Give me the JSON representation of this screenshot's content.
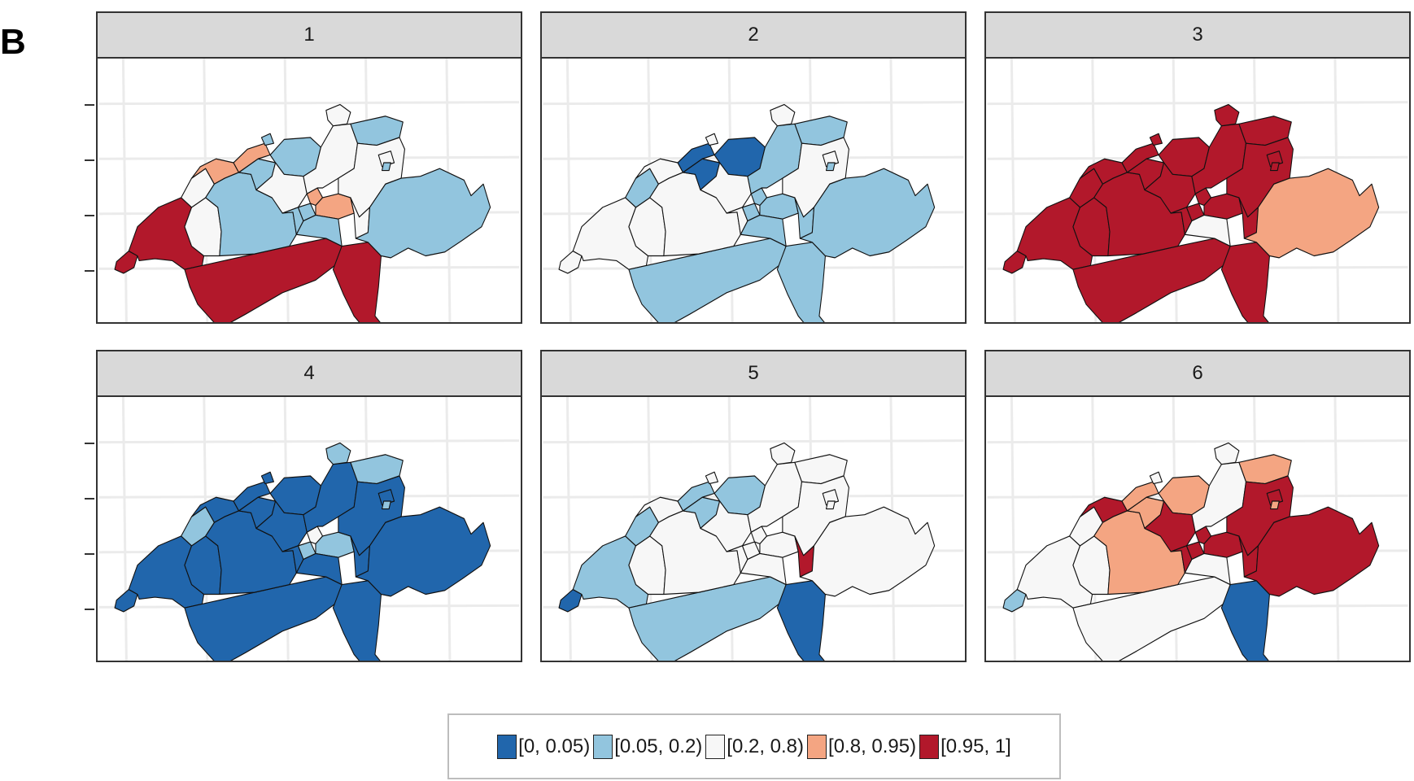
{
  "panel_label": "B",
  "facets": [
    {
      "label": "1",
      "classes": {
        "GE": 4,
        "VD": 4,
        "VS": 4,
        "TI": 4,
        "FR": 2,
        "NE": 2,
        "JU": 3,
        "BE": 1,
        "SO": 1,
        "BL": 3,
        "BS": 1,
        "AG": 1,
        "LU": 2,
        "OW": 1,
        "NW": 1,
        "ZG": 3,
        "SZ": 3,
        "UR": 1,
        "ZH": 2,
        "SH": 2,
        "TG": 1,
        "SG": 2,
        "AR": 2,
        "AI": 1,
        "GL": 2,
        "GR": 1
      }
    },
    {
      "label": "2",
      "classes": {
        "GE": 2,
        "VD": 2,
        "VS": 1,
        "TI": 1,
        "FR": 2,
        "NE": 1,
        "JU": 2,
        "BE": 2,
        "SO": 0,
        "BL": 0,
        "BS": 2,
        "AG": 0,
        "LU": 2,
        "OW": 2,
        "NW": 1,
        "ZG": 1,
        "SZ": 1,
        "UR": 1,
        "ZH": 1,
        "SH": 2,
        "TG": 1,
        "SG": 2,
        "AR": 2,
        "AI": 1,
        "GL": 1,
        "GR": 1
      }
    },
    {
      "label": "3",
      "classes": {
        "GE": 4,
        "VD": 4,
        "VS": 4,
        "TI": 4,
        "FR": 4,
        "NE": 4,
        "JU": 4,
        "BE": 4,
        "SO": 4,
        "BL": 4,
        "BS": 4,
        "AG": 4,
        "LU": 4,
        "OW": 4,
        "NW": 4,
        "ZG": 4,
        "SZ": 4,
        "UR": 2,
        "ZH": 4,
        "SH": 4,
        "TG": 4,
        "SG": 4,
        "AR": 4,
        "AI": 4,
        "GL": 4,
        "GR": 3
      }
    },
    {
      "label": "4",
      "classes": {
        "GE": 0,
        "VD": 0,
        "VS": 0,
        "TI": 0,
        "FR": 0,
        "NE": 1,
        "JU": 0,
        "BE": 0,
        "SO": 0,
        "BL": 0,
        "BS": 0,
        "AG": 0,
        "LU": 0,
        "OW": 0,
        "NW": 1,
        "ZG": 2,
        "SZ": 1,
        "UR": 0,
        "ZH": 0,
        "SH": 1,
        "TG": 1,
        "SG": 0,
        "AR": 0,
        "AI": 1,
        "GL": 0,
        "GR": 0
      }
    },
    {
      "label": "5",
      "classes": {
        "GE": 0,
        "VD": 1,
        "VS": 1,
        "TI": 0,
        "FR": 2,
        "NE": 1,
        "JU": 2,
        "BE": 2,
        "SO": 1,
        "BL": 1,
        "BS": 2,
        "AG": 1,
        "LU": 2,
        "OW": 2,
        "NW": 2,
        "ZG": 2,
        "SZ": 2,
        "UR": 2,
        "ZH": 2,
        "SH": 2,
        "TG": 2,
        "SG": 2,
        "AR": 2,
        "AI": 2,
        "GL": 4,
        "GR": 2
      }
    },
    {
      "label": "6",
      "classes": {
        "GE": 1,
        "VD": 2,
        "VS": 2,
        "TI": 0,
        "FR": 2,
        "NE": 2,
        "JU": 4,
        "BE": 3,
        "SO": 3,
        "BL": 3,
        "BS": 2,
        "AG": 3,
        "LU": 4,
        "OW": 4,
        "NW": 4,
        "ZG": 4,
        "SZ": 4,
        "UR": 2,
        "ZH": 2,
        "SH": 2,
        "TG": 3,
        "SG": 4,
        "AR": 4,
        "AI": 3,
        "GL": 4,
        "GR": 4
      }
    }
  ],
  "legend": [
    {
      "label": "[0, 0.05)",
      "color": "#2166ac"
    },
    {
      "label": "[0.05, 0.2)",
      "color": "#92c5de"
    },
    {
      "label": "[0.2, 0.8)",
      "color": "#f7f7f7"
    },
    {
      "label": "[0.8, 0.95)",
      "color": "#f4a582"
    },
    {
      "label": "[0.95, 1]",
      "color": "#b2182b"
    }
  ]
}
